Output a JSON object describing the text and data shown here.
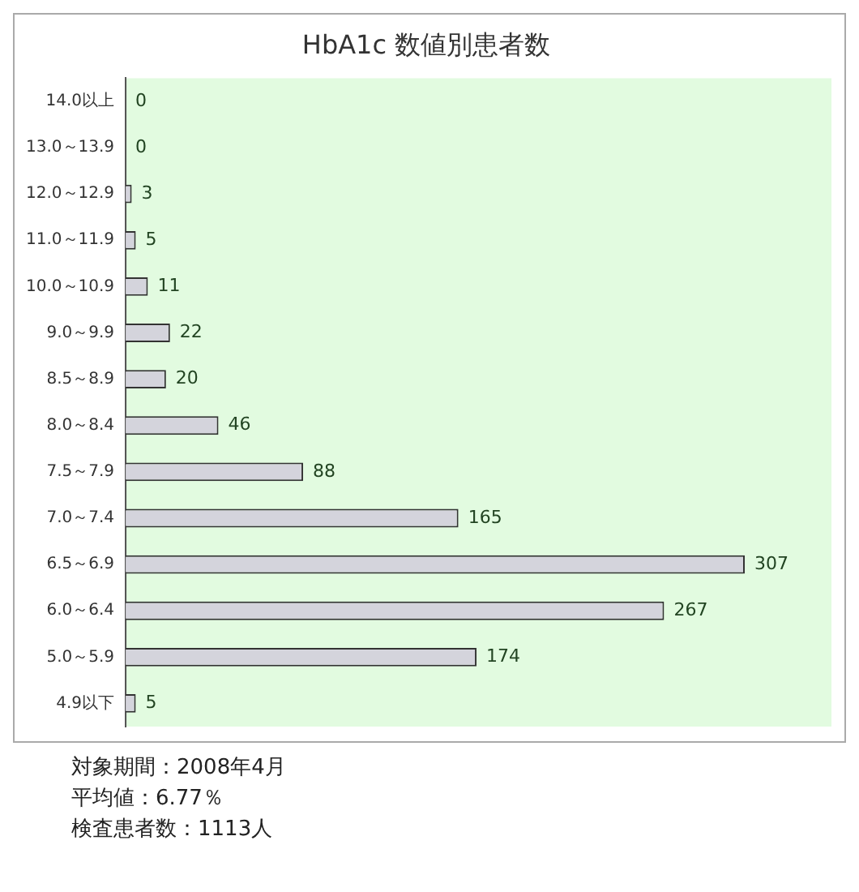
{
  "chart_data": {
    "type": "bar",
    "orientation": "horizontal",
    "title": "HbA1c 数値別患者数",
    "categories": [
      "14.0以上",
      "13.0～13.9",
      "12.0～12.9",
      "11.0～11.9",
      "10.0～10.9",
      "9.0～9.9",
      "8.5～8.9",
      "8.0～8.4",
      "7.5～7.9",
      "7.0～7.4",
      "6.5～6.9",
      "6.0～6.4",
      "5.0～5.9",
      "4.9以下"
    ],
    "values": [
      0,
      0,
      3,
      5,
      11,
      22,
      20,
      46,
      88,
      165,
      307,
      267,
      174,
      5
    ],
    "color": "#d4d4dc",
    "data_labels": true,
    "tick_labels": "y",
    "grid": false,
    "legend": false,
    "annotations": [
      "対象期間：2008年4月",
      "平均値：6.77％",
      "検査患者数：1113人"
    ]
  }
}
